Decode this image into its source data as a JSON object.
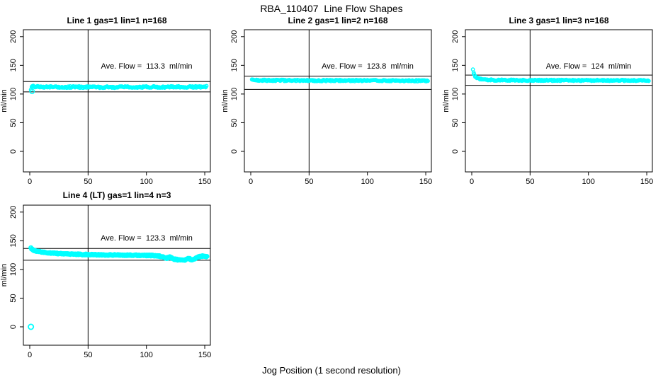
{
  "page": {
    "title": "RBA_110407  Line Flow Shapes",
    "xlabel": "Jog Position (1 second resolution)",
    "background": "#ffffff"
  },
  "chart_data": {
    "type": "scatter",
    "point_color": "#00FFFF",
    "axis_color": "#000000",
    "ylabel": "ml/min",
    "x_ticks": [
      0,
      50,
      100,
      150
    ],
    "y_ticks": [
      0,
      50,
      100,
      150,
      200
    ],
    "xlim": [
      -5,
      155
    ],
    "ylim": [
      -35,
      212
    ],
    "vline_x": 50,
    "grid": false,
    "legend": "none",
    "panels": [
      {
        "title": "Line 1 gas=1 lin=1 n=168",
        "annotation": "Ave. Flow =  113.3  ml/min",
        "ave_flow": 113.3,
        "n": 168,
        "ref_upper": 121.8,
        "ref_lower": 103.8,
        "profile": [
          [
            1,
            109
          ],
          [
            2,
            112.5
          ],
          [
            3,
            113.5
          ],
          [
            6,
            112.8
          ],
          [
            15,
            112.3
          ],
          [
            60,
            112
          ],
          [
            110,
            112.3
          ],
          [
            148,
            112.6
          ],
          [
            152,
            113
          ]
        ],
        "noise": 1.5,
        "outliers": [
          [
            2,
            104.5
          ]
        ],
        "point_r": 2.2,
        "stroke_w": 1.4,
        "step": 0.7
      },
      {
        "title": "Line 2 gas=1 lin=2 n=168",
        "annotation": "Ave. Flow =  123.8  ml/min",
        "ave_flow": 123.8,
        "n": 168,
        "ref_upper": 131.0,
        "ref_lower": 108.0,
        "profile": [
          [
            1,
            126.3
          ],
          [
            2,
            124.8
          ],
          [
            5,
            124
          ],
          [
            40,
            123.6
          ],
          [
            100,
            123.4
          ],
          [
            152,
            123.2
          ]
        ],
        "noise": 1.2,
        "outliers": [],
        "point_r": 2.2,
        "stroke_w": 1.4,
        "step": 0.7
      },
      {
        "title": "Line 3 gas=1 lin=3 n=168",
        "annotation": "Ave. Flow =  124  ml/min",
        "ave_flow": 124,
        "n": 168,
        "ref_upper": 133.0,
        "ref_lower": 115.2,
        "profile": [
          [
            1,
            143.5
          ],
          [
            2,
            135
          ],
          [
            3,
            130
          ],
          [
            5,
            127.2
          ],
          [
            9,
            125.3
          ],
          [
            18,
            124.3
          ],
          [
            60,
            123.8
          ],
          [
            152,
            123.6
          ]
        ],
        "noise": 1.1,
        "outliers": [],
        "point_r": 2.2,
        "stroke_w": 1.4,
        "step": 0.7
      },
      {
        "title": "Line 4 (LT) gas=1 lin=4 n=3",
        "annotation": "Ave. Flow =  123.3  ml/min",
        "ave_flow": 123.3,
        "n": 3,
        "ref_upper": 136.5,
        "ref_lower": 116.0,
        "profile": [
          [
            1,
            137
          ],
          [
            2,
            135
          ],
          [
            4,
            133
          ],
          [
            7,
            131.4
          ],
          [
            12,
            129.8
          ],
          [
            20,
            128.3
          ],
          [
            32,
            127
          ],
          [
            48,
            126
          ],
          [
            70,
            125.2
          ],
          [
            95,
            124.6
          ],
          [
            108,
            124.2
          ],
          [
            113,
            122.5
          ],
          [
            117,
            119.5
          ],
          [
            120,
            121.5
          ],
          [
            124,
            118
          ],
          [
            128,
            116.5
          ],
          [
            133,
            115.8
          ],
          [
            136,
            119.5
          ],
          [
            139,
            116.8
          ],
          [
            142,
            119
          ],
          [
            145,
            122
          ],
          [
            148,
            123
          ],
          [
            152,
            122
          ]
        ],
        "noise": 0.9,
        "outliers": [
          [
            1,
            0
          ]
        ],
        "point_r": 2.6,
        "stroke_w": 1.8,
        "step": 0.55
      }
    ]
  }
}
